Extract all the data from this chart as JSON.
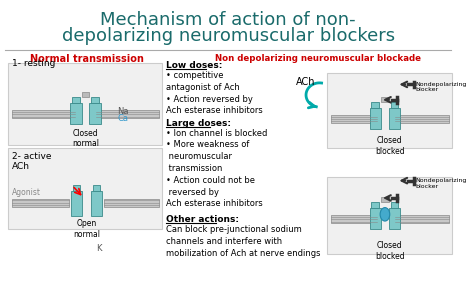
{
  "title_line1": "Mechanism of action of non-",
  "title_line2": "depolarizing neuromuscular blockers",
  "title_color": "#1a6b6b",
  "title_fontsize": 13,
  "bg_color": "#ffffff",
  "section1_header": "Normal transmission",
  "section1_color": "#cc0000",
  "section2_header": "Low doses:",
  "section2_color": "#000000",
  "section3_header": "Non depolarizing neuromuscular blockade",
  "section3_color": "#cc0000",
  "low_doses_text": "• competitive\nantagonist of Ach\n• Action reversed by\nAch esterase inhibitors",
  "large_doses_header": "Large doses:",
  "large_doses_text": "• Ion channel is blocked\n• More weakness of\n neuromuscular\n transmission\n• Action could not be\n reversed by\nAch esterase inhibitors",
  "other_actions_header": "Other actions:",
  "other_actions_text": "Can block pre-junctional sodium\nchannels and interfere with\nmobilization of Ach at nerve endings",
  "label1": "1- resting",
  "label2": "2- active\nACh",
  "label_na": "Na",
  "label_ca": "Ca",
  "label_k": "K",
  "label_ach": "ACh",
  "label_agonist": "Agonist",
  "label_closed_normal": "Closed\nnormal",
  "label_open_normal": "Open\nnormal",
  "label_closed_blocked1": "Closed\nblocked",
  "label_closed_blocked2": "Closed\nblocked",
  "label_nondep1": "Nondepolarizing\nblocker",
  "label_nondep2": "Nondepolarizing\nblocker",
  "teal_color": "#7ec8c8",
  "teal_dark": "#5aadad",
  "gray_color": "#999999",
  "light_gray": "#e8e8e8",
  "separator_color": "#aaaaaa"
}
